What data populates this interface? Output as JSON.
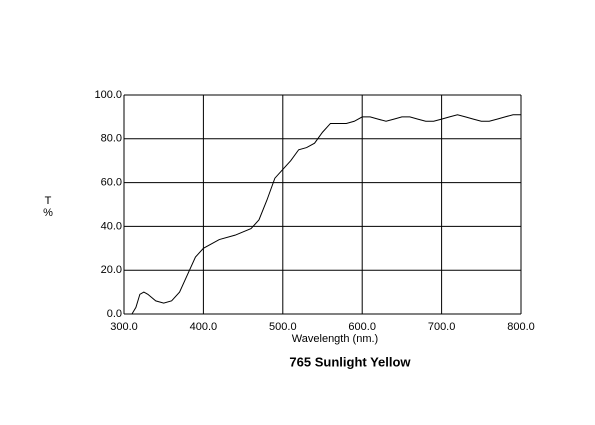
{
  "chart_data": {
    "type": "line",
    "title": "765 Sunlight Yellow",
    "xlabel": "Wavelength (nm.)",
    "ylabel_lines": [
      "T",
      "%"
    ],
    "x": [
      310,
      315,
      320,
      325,
      330,
      340,
      350,
      360,
      370,
      380,
      390,
      400,
      420,
      440,
      460,
      470,
      480,
      490,
      500,
      510,
      520,
      530,
      540,
      550,
      560,
      570,
      580,
      590,
      600,
      610,
      620,
      630,
      640,
      650,
      660,
      670,
      680,
      690,
      700,
      710,
      720,
      730,
      740,
      750,
      760,
      770,
      780,
      790,
      800
    ],
    "series": [
      {
        "name": "T",
        "color": "#000000",
        "values": [
          0,
          3,
          9,
          10,
          9,
          6,
          5,
          6,
          10,
          18,
          26,
          30,
          34,
          36,
          39,
          43,
          52,
          62,
          66,
          70,
          75,
          76,
          78,
          83,
          87,
          87,
          87,
          88,
          90,
          90,
          89,
          88,
          89,
          90,
          90,
          89,
          88,
          88,
          89,
          90,
          91,
          90,
          89,
          88,
          88,
          89,
          90,
          91,
          91
        ]
      }
    ],
    "xlim": [
      300,
      800
    ],
    "ylim": [
      0,
      100
    ],
    "xticks": [
      {
        "value": 300,
        "label": "300.0"
      },
      {
        "value": 400,
        "label": "400.0"
      },
      {
        "value": 500,
        "label": "500.0"
      },
      {
        "value": 600,
        "label": "600.0"
      },
      {
        "value": 700,
        "label": "700.0"
      },
      {
        "value": 800,
        "label": "800.0"
      }
    ],
    "yticks": [
      {
        "value": 0,
        "label": "0.0"
      },
      {
        "value": 20,
        "label": "20.0"
      },
      {
        "value": 40,
        "label": "40.0"
      },
      {
        "value": 60,
        "label": "60.0"
      },
      {
        "value": 80,
        "label": "80.0"
      },
      {
        "value": 100,
        "label": "100.0"
      }
    ],
    "grid": true
  }
}
